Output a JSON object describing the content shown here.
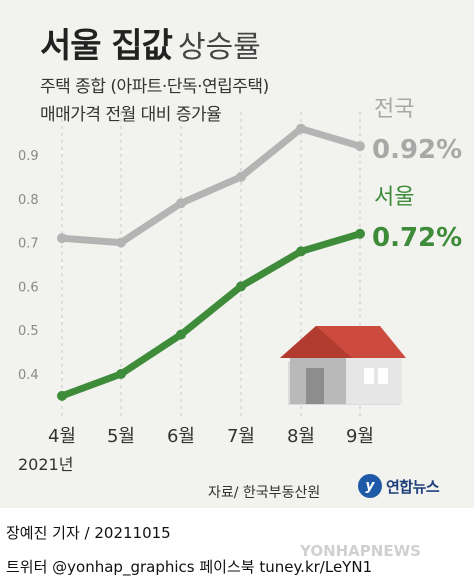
{
  "header": {
    "title_bold": "서울 집값",
    "title_light": "상승률",
    "subtitle_line1": "주택 종합 (아파트·단독·연립주택)",
    "subtitle_line2": "매매가격 전월 대비 증가율"
  },
  "chart_data": {
    "type": "line",
    "categories": [
      "4월",
      "5월",
      "6월",
      "7월",
      "8월",
      "9월"
    ],
    "year_label": "2021년",
    "ylim": [
      0.3,
      1.0
    ],
    "yticks": [
      "0.9",
      "0.8",
      "0.7",
      "0.6",
      "0.5",
      "0.4"
    ],
    "series": [
      {
        "name": "전국",
        "values": [
          0.71,
          0.7,
          0.79,
          0.85,
          0.96,
          0.92
        ],
        "end_label": "0.92%",
        "color": "#b4b4b4",
        "label_color": "#a8a8a8"
      },
      {
        "name": "서울",
        "values": [
          0.35,
          0.4,
          0.49,
          0.6,
          0.68,
          0.72
        ],
        "end_label": "0.72%",
        "color": "#3e8c3a",
        "label_color": "#3e8c3a"
      }
    ],
    "grid": "vertical dashed"
  },
  "footer": {
    "source": "자료/ 한국부동산원",
    "logo_text": "연합뉴스",
    "credit_line1": "장예진 기자 / 20211015",
    "credit_line2": "트위터 @yonhap_graphics  페이스북 tuney.kr/LeYN1",
    "watermark": "YONHAPNEWS"
  },
  "colors": {
    "background": "#f2f2ee",
    "roof": "#cc4a3e",
    "house_wall": "#dcdcdc"
  },
  "icons": {
    "house": "house-icon",
    "logo": "yonhap-logo-icon"
  }
}
